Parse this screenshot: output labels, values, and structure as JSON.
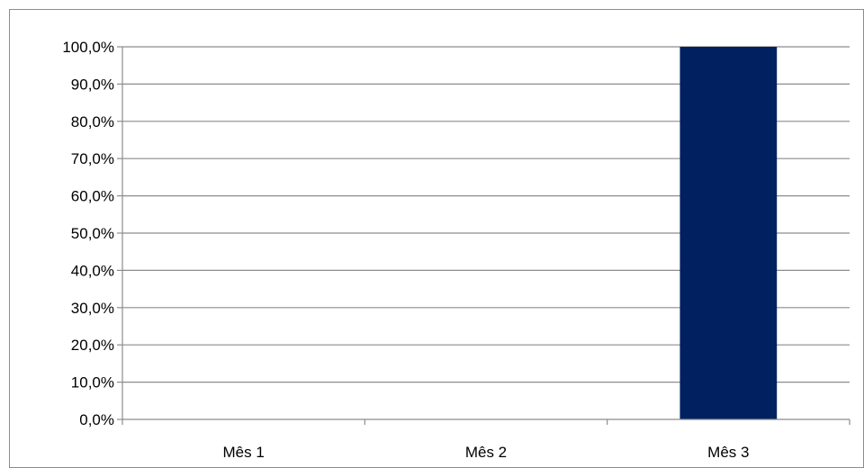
{
  "chart_data": {
    "type": "bar",
    "title": "",
    "xlabel": "",
    "ylabel": "",
    "categories": [
      "Mês 1",
      "Mês 2",
      "Mês 3"
    ],
    "values": [
      0,
      0,
      100
    ],
    "ylim": [
      0,
      100
    ],
    "y_ticks": [
      "0,0%",
      "10,0%",
      "20,0%",
      "30,0%",
      "40,0%",
      "50,0%",
      "60,0%",
      "70,0%",
      "80,0%",
      "90,0%",
      "100,0%"
    ],
    "grid": true,
    "legend": "none",
    "colors": {
      "bar": "#002060",
      "gridline": "#8c8c8c",
      "axis": "#8c8c8c",
      "frame": "#8c8c8c"
    }
  }
}
